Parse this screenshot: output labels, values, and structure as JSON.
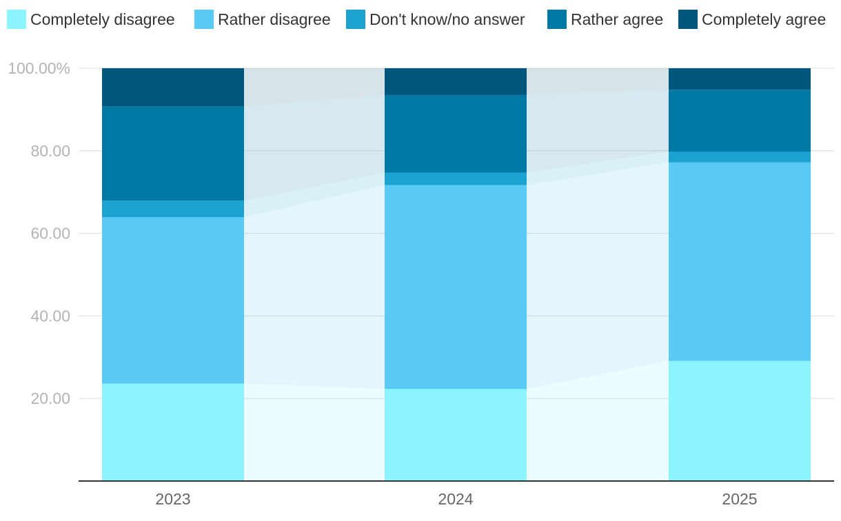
{
  "chart_data": {
    "type": "bar",
    "stacked": true,
    "categories": [
      "2023",
      "2024",
      "2025"
    ],
    "series": [
      {
        "name": "Completely disagree",
        "color": "#8bf4ff",
        "values": [
          23.6,
          22.3,
          29.1
        ]
      },
      {
        "name": "Rather disagree",
        "color": "#59caf5",
        "values": [
          40.3,
          49.4,
          48.1
        ]
      },
      {
        "name": "Don't know/no answer",
        "color": "#1aa3d1",
        "values": [
          4.0,
          3.0,
          2.6
        ]
      },
      {
        "name": "Rather agree",
        "color": "#0079a5",
        "values": [
          22.8,
          18.8,
          15.0
        ]
      },
      {
        "name": "Completely agree",
        "color": "#00577e",
        "values": [
          9.3,
          6.5,
          5.2
        ]
      }
    ],
    "y_ticks": [
      "20.00",
      "40.00",
      "60.00",
      "80.00",
      "100.00%"
    ],
    "y_tick_values": [
      20,
      40,
      60,
      80,
      100
    ],
    "ylim": [
      0,
      100
    ],
    "legend_position": "top",
    "grid": true,
    "title": "",
    "xlabel": "",
    "ylabel": ""
  }
}
